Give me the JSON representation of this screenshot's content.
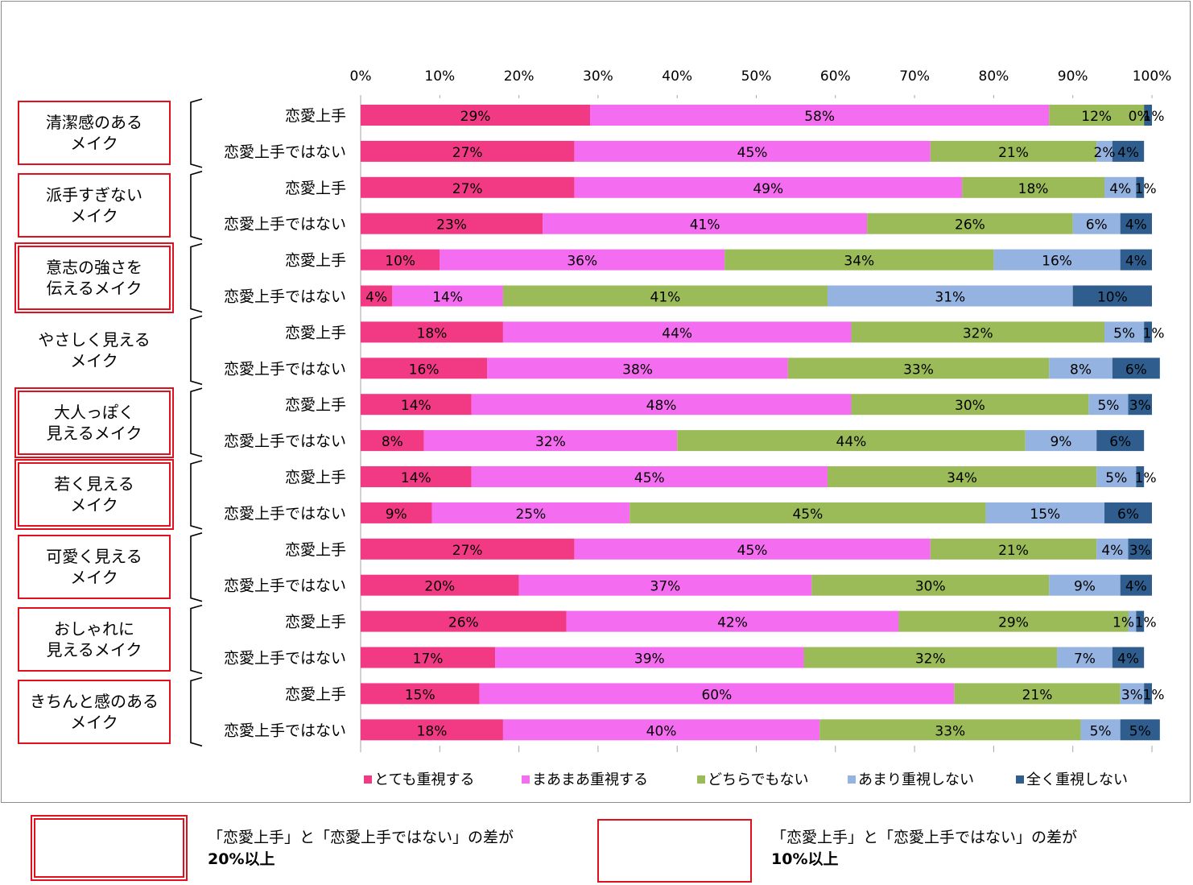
{
  "chart_data": {
    "type": "bar",
    "orientation": "horizontal",
    "stacked": true,
    "percent_stacked": true,
    "xlim": [
      0,
      100
    ],
    "x_ticks": [
      "0%",
      "10%",
      "20%",
      "30%",
      "40%",
      "50%",
      "60%",
      "70%",
      "80%",
      "90%",
      "100%"
    ],
    "legend_position": "bottom",
    "series_names": [
      "とても重視する",
      "まあまあ重視する",
      "どちらでもない",
      "あまり重視しない",
      "全く重視しない"
    ],
    "series_colors": [
      "#f23a84",
      "#f46cf0",
      "#9bbb59",
      "#95b3e0",
      "#2f5e8e"
    ],
    "groups": [
      {
        "label": "清潔感のある\nメイク",
        "highlight": "single",
        "rows": [
          {
            "label": "恋愛上手",
            "values": [
              29,
              58,
              12,
              0,
              1
            ],
            "labels": [
              "29%",
              "58%",
              "12%",
              "0%",
              "1%"
            ]
          },
          {
            "label": "恋愛上手ではない",
            "values": [
              27,
              45,
              21,
              2,
              4
            ],
            "labels": [
              "27%",
              "45%",
              "21%",
              "2%",
              "4%"
            ]
          }
        ]
      },
      {
        "label": "派手すぎない\nメイク",
        "highlight": "single",
        "rows": [
          {
            "label": "恋愛上手",
            "values": [
              27,
              49,
              18,
              4,
              1
            ],
            "labels": [
              "27%",
              "49%",
              "18%",
              "4%",
              "1%"
            ]
          },
          {
            "label": "恋愛上手ではない",
            "values": [
              23,
              41,
              26,
              6,
              4
            ],
            "labels": [
              "23%",
              "41%",
              "26%",
              "6%",
              "4%"
            ]
          }
        ]
      },
      {
        "label": "意志の強さを\n伝えるメイク",
        "highlight": "double",
        "rows": [
          {
            "label": "恋愛上手",
            "values": [
              10,
              36,
              34,
              16,
              4
            ],
            "labels": [
              "10%",
              "36%",
              "34%",
              "16%",
              "4%"
            ]
          },
          {
            "label": "恋愛上手ではない",
            "values": [
              4,
              14,
              41,
              31,
              10
            ],
            "labels": [
              "4%",
              "14%",
              "41%",
              "31%",
              "10%"
            ]
          }
        ]
      },
      {
        "label": "やさしく見える\nメイク",
        "highlight": "none",
        "rows": [
          {
            "label": "恋愛上手",
            "values": [
              18,
              44,
              32,
              5,
              1
            ],
            "labels": [
              "18%",
              "44%",
              "32%",
              "5%",
              "1%"
            ]
          },
          {
            "label": "恋愛上手ではない",
            "values": [
              16,
              38,
              33,
              8,
              6
            ],
            "labels": [
              "16%",
              "38%",
              "33%",
              "8%",
              "6%"
            ]
          }
        ]
      },
      {
        "label": "大人っぽく\n見えるメイク",
        "highlight": "double",
        "rows": [
          {
            "label": "恋愛上手",
            "values": [
              14,
              48,
              30,
              5,
              3
            ],
            "labels": [
              "14%",
              "48%",
              "30%",
              "5%",
              "3%"
            ]
          },
          {
            "label": "恋愛上手ではない",
            "values": [
              8,
              32,
              44,
              9,
              6
            ],
            "labels": [
              "8%",
              "32%",
              "44%",
              "9%",
              "6%"
            ]
          }
        ]
      },
      {
        "label": "若く見える\nメイク",
        "highlight": "double",
        "rows": [
          {
            "label": "恋愛上手",
            "values": [
              14,
              45,
              34,
              5,
              1
            ],
            "labels": [
              "14%",
              "45%",
              "34%",
              "5%",
              "1%"
            ]
          },
          {
            "label": "恋愛上手ではない",
            "values": [
              9,
              25,
              45,
              15,
              6
            ],
            "labels": [
              "9%",
              "25%",
              "45%",
              "15%",
              "6%"
            ]
          }
        ]
      },
      {
        "label": "可愛く見える\nメイク",
        "highlight": "single",
        "rows": [
          {
            "label": "恋愛上手",
            "values": [
              27,
              45,
              21,
              4,
              3
            ],
            "labels": [
              "27%",
              "45%",
              "21%",
              "4%",
              "3%"
            ]
          },
          {
            "label": "恋愛上手ではない",
            "values": [
              20,
              37,
              30,
              9,
              4
            ],
            "labels": [
              "20%",
              "37%",
              "30%",
              "9%",
              "4%"
            ]
          }
        ]
      },
      {
        "label": "おしゃれに\n見えるメイク",
        "highlight": "single",
        "rows": [
          {
            "label": "恋愛上手",
            "values": [
              26,
              42,
              29,
              1,
              1
            ],
            "labels": [
              "26%",
              "42%",
              "29%",
              "1%",
              "1%"
            ]
          },
          {
            "label": "恋愛上手ではない",
            "values": [
              17,
              39,
              32,
              7,
              4
            ],
            "labels": [
              "17%",
              "39%",
              "32%",
              "7%",
              "4%"
            ]
          }
        ]
      },
      {
        "label": "きちんと感のある\nメイク",
        "highlight": "single",
        "rows": [
          {
            "label": "恋愛上手",
            "values": [
              15,
              60,
              21,
              3,
              1
            ],
            "labels": [
              "15%",
              "60%",
              "21%",
              "3%",
              "1%"
            ]
          },
          {
            "label": "恋愛上手ではない",
            "values": [
              18,
              40,
              33,
              5,
              5
            ],
            "labels": [
              "18%",
              "40%",
              "33%",
              "5%",
              "5%"
            ]
          }
        ]
      }
    ]
  },
  "key": {
    "double_line1": "「恋愛上手」と「恋愛上手ではない」の差が",
    "double_line2": "20%以上",
    "single_line1": "「恋愛上手」と「恋愛上手ではない」の差が",
    "single_line2": "10%以上",
    "highlight_color": "#e0101e"
  }
}
